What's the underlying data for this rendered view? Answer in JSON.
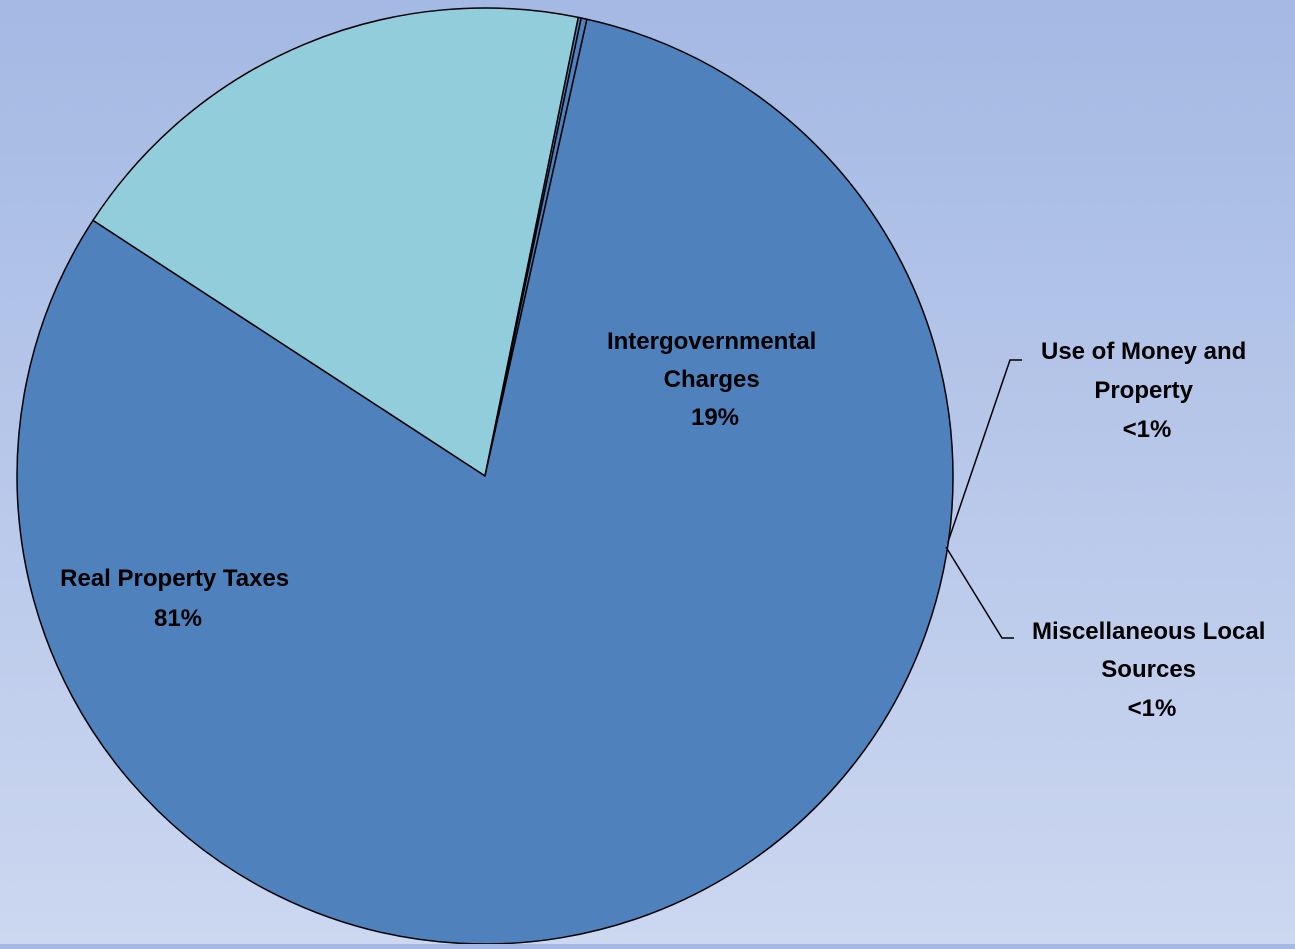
{
  "chart_data": {
    "type": "pie",
    "title": "",
    "slices": [
      {
        "name_lines": [
          "Intergovernmental",
          "Charges"
        ],
        "value": 19,
        "pct_label": "19%",
        "color": "#92cddc"
      },
      {
        "name_lines": [
          "Use of Money and",
          "Property"
        ],
        "value": 0.1,
        "pct_label": "<1%",
        "color": "#4f81bd"
      },
      {
        "name_lines": [
          "Miscellaneous Local",
          "Sources"
        ],
        "value": 0.2,
        "pct_label": "<1%",
        "color": "#4f81bd"
      },
      {
        "name_lines": [
          "Real Property Taxes"
        ],
        "value": 80.7,
        "pct_label": "81%",
        "color": "#4f81bd"
      }
    ],
    "legend": "none",
    "data_labels": "category and percentage"
  }
}
